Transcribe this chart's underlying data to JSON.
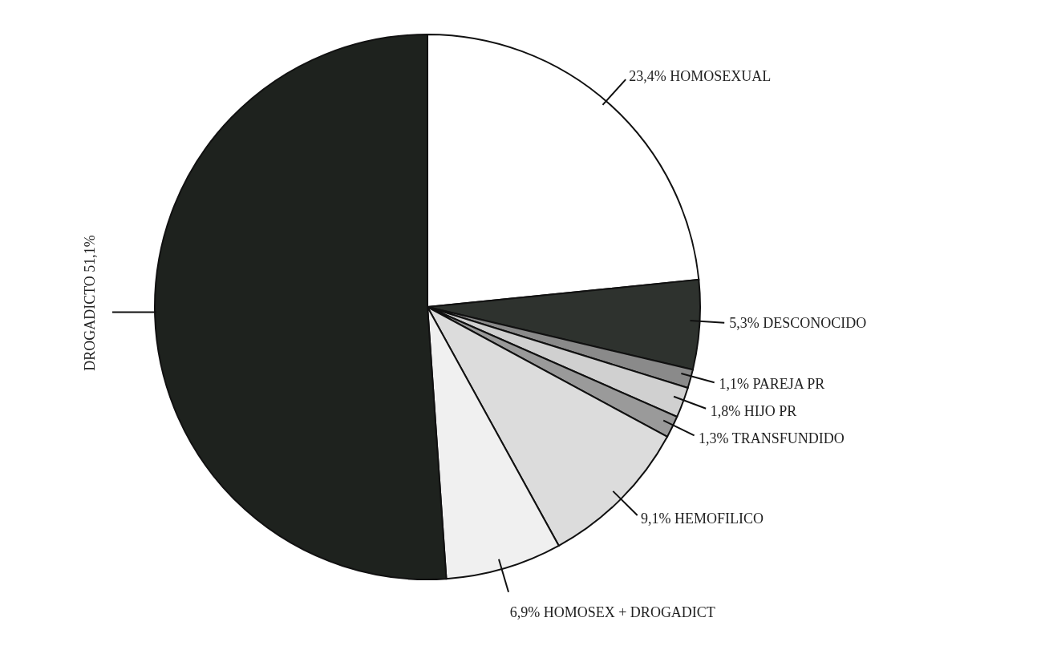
{
  "chart_data": {
    "type": "pie",
    "categories": [
      "HOMOSEXUAL",
      "DESCONOCIDO",
      "PAREJA PR",
      "HIJO PR",
      "TRANSFUNDIDO",
      "HEMOFILICO",
      "HOMOSEX + DROGADICT",
      "DROGADICTO"
    ],
    "values": [
      23.4,
      5.3,
      1.1,
      1.8,
      1.3,
      9.1,
      6.9,
      51.1
    ],
    "colors": [
      "#ffffff",
      "#2e322e",
      "#8a8a8a",
      "#d0d0d0",
      "#9a9a9a",
      "#dcdcdc",
      "#f0f0f0",
      "#1e221e"
    ],
    "value_labels": [
      "23,4%",
      "5,3%",
      "1,1%",
      "1,8%",
      "1,3%",
      "9,1%",
      "6,9%",
      "51,1%"
    ]
  }
}
